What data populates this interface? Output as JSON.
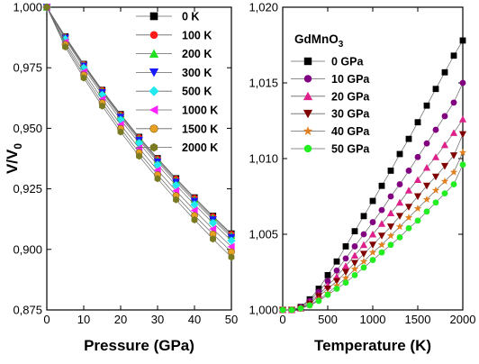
{
  "chart_data": [
    {
      "type": "line",
      "ylabel_main": "V/V",
      "ylabel_sub": "0",
      "xlabel": "Pressure (GPa)",
      "xlim": [
        0,
        50
      ],
      "ylim": [
        0.875,
        1.0
      ],
      "xticks": [
        "0",
        "10",
        "20",
        "30",
        "40",
        "50"
      ],
      "yticks": [
        "0,875",
        "0,900",
        "0,925",
        "0,950",
        "0,975",
        "1,000"
      ],
      "grid": false,
      "legend_position": "top-right",
      "series": [
        {
          "name": "0 K",
          "color": "#000000",
          "marker": "square",
          "x": [
            0,
            5,
            10,
            15,
            20,
            25,
            30,
            35,
            40,
            45,
            50
          ],
          "y": [
            1.0,
            0.9879,
            0.9765,
            0.9658,
            0.9558,
            0.9464,
            0.9376,
            0.9293,
            0.9214,
            0.9138,
            0.9065
          ]
        },
        {
          "name": "100 K",
          "color": "#ff1a1a",
          "marker": "circle",
          "x": [
            0,
            5,
            10,
            15,
            20,
            25,
            30,
            35,
            40,
            45,
            50
          ],
          "y": [
            1.0,
            0.9878,
            0.9764,
            0.9657,
            0.9556,
            0.9462,
            0.9374,
            0.9291,
            0.9212,
            0.9136,
            0.9063
          ]
        },
        {
          "name": "200 K",
          "color": "#22e022",
          "marker": "triangle-up",
          "x": [
            0,
            5,
            10,
            15,
            20,
            25,
            30,
            35,
            40,
            45,
            50
          ],
          "y": [
            1.0,
            0.9876,
            0.9761,
            0.9653,
            0.9552,
            0.9457,
            0.9369,
            0.9285,
            0.9206,
            0.913,
            0.9057
          ]
        },
        {
          "name": "300 K",
          "color": "#1a1aff",
          "marker": "triangle-down",
          "x": [
            0,
            5,
            10,
            15,
            20,
            25,
            30,
            35,
            40,
            45,
            50
          ],
          "y": [
            1.0,
            0.9873,
            0.9757,
            0.9648,
            0.9546,
            0.9451,
            0.9362,
            0.9278,
            0.9199,
            0.9123,
            0.905
          ]
        },
        {
          "name": "500 K",
          "color": "#22e8f0",
          "marker": "diamond",
          "x": [
            0,
            5,
            10,
            15,
            20,
            25,
            30,
            35,
            40,
            45,
            50
          ],
          "y": [
            1.0,
            0.9868,
            0.9749,
            0.9638,
            0.9535,
            0.9439,
            0.9349,
            0.9265,
            0.9185,
            0.9109,
            0.9036
          ]
        },
        {
          "name": "1000 K",
          "color": "#ff22ff",
          "marker": "triangle-left",
          "x": [
            0,
            5,
            10,
            15,
            20,
            25,
            30,
            35,
            40,
            45,
            50
          ],
          "y": [
            1.0,
            0.9856,
            0.9733,
            0.962,
            0.9515,
            0.9418,
            0.9327,
            0.9242,
            0.9161,
            0.9084,
            0.9011
          ]
        },
        {
          "name": "1500 K",
          "color": "#e8a020",
          "marker": "sphere",
          "x": [
            0,
            5,
            10,
            15,
            20,
            25,
            30,
            35,
            40,
            45,
            50
          ],
          "y": [
            1.0,
            0.9846,
            0.972,
            0.9605,
            0.9499,
            0.94,
            0.9308,
            0.9222,
            0.914,
            0.9063,
            0.899
          ]
        },
        {
          "name": "2000 K",
          "color": "#7a7a22",
          "marker": "hexagon",
          "x": [
            0,
            5,
            10,
            15,
            20,
            25,
            30,
            35,
            40,
            45,
            50
          ],
          "y": [
            1.0,
            0.9836,
            0.9708,
            0.9592,
            0.9485,
            0.9385,
            0.9292,
            0.9205,
            0.9122,
            0.9043,
            0.8968
          ]
        }
      ]
    },
    {
      "type": "line",
      "title": "GdMnO",
      "title_sub": "3",
      "xlabel": "Temperature (K)",
      "xlim": [
        0,
        2000
      ],
      "ylim": [
        1.0,
        1.02
      ],
      "xticks": [
        "0",
        "500",
        "1000",
        "1500",
        "2000"
      ],
      "yticks": [
        "1,000",
        "1,005",
        "1,010",
        "1,015",
        "1,020"
      ],
      "grid": false,
      "legend_position": "top-left",
      "series": [
        {
          "name": "0 GPa",
          "color": "#000000",
          "marker": "square",
          "x": [
            0,
            100,
            200,
            300,
            400,
            500,
            600,
            700,
            800,
            900,
            1000,
            1100,
            1200,
            1300,
            1400,
            1500,
            1600,
            1700,
            1800,
            1900,
            2000
          ],
          "y": [
            1.0,
            1.0,
            1.0002,
            1.0007,
            1.0014,
            1.0023,
            1.0032,
            1.0042,
            1.0052,
            1.0062,
            1.0072,
            1.0082,
            1.0092,
            1.0103,
            1.0113,
            1.0124,
            1.0135,
            1.0146,
            1.0157,
            1.0168,
            1.0178
          ]
        },
        {
          "name": "10 GPa",
          "color": "#800080",
          "marker": "circle",
          "x": [
            0,
            100,
            200,
            300,
            400,
            500,
            600,
            700,
            800,
            900,
            1000,
            1100,
            1200,
            1300,
            1400,
            1500,
            1600,
            1700,
            1800,
            1900,
            2000
          ],
          "y": [
            1.0,
            1.0,
            1.0002,
            1.0006,
            1.0012,
            1.0019,
            1.0026,
            1.0034,
            1.0042,
            1.005,
            1.0058,
            1.0066,
            1.0075,
            1.0083,
            1.0092,
            1.0101,
            1.011,
            1.0119,
            1.0128,
            1.0137,
            1.015
          ]
        },
        {
          "name": "20 GPa",
          "color": "#e0208a",
          "marker": "triangle-up",
          "x": [
            0,
            100,
            200,
            300,
            400,
            500,
            600,
            700,
            800,
            900,
            1000,
            1100,
            1200,
            1300,
            1400,
            1500,
            1600,
            1700,
            1800,
            1900,
            2000
          ],
          "y": [
            1.0,
            1.0,
            1.0001,
            1.0005,
            1.001,
            1.0016,
            1.0022,
            1.0029,
            1.0036,
            1.0043,
            1.005,
            1.0057,
            1.0064,
            1.0071,
            1.0079,
            1.0086,
            1.0094,
            1.0101,
            1.0109,
            1.0117,
            1.0126
          ]
        },
        {
          "name": "30 GPa",
          "color": "#800000",
          "marker": "triangle-down",
          "x": [
            0,
            100,
            200,
            300,
            400,
            500,
            600,
            700,
            800,
            900,
            1000,
            1100,
            1200,
            1300,
            1400,
            1500,
            1600,
            1700,
            1800,
            1900,
            2000
          ],
          "y": [
            1.0,
            1.0,
            1.0001,
            1.0004,
            1.0009,
            1.0014,
            1.0019,
            1.0025,
            1.0031,
            1.0037,
            1.0043,
            1.0049,
            1.0055,
            1.0062,
            1.0068,
            1.0075,
            1.0082,
            1.0088,
            1.0095,
            1.0102,
            1.0116
          ]
        },
        {
          "name": "40 GPa",
          "color": "#e08020",
          "marker": "star",
          "x": [
            0,
            100,
            200,
            300,
            400,
            500,
            600,
            700,
            800,
            900,
            1000,
            1100,
            1200,
            1300,
            1400,
            1500,
            1600,
            1700,
            1800,
            1900,
            2000
          ],
          "y": [
            1.0,
            1.0,
            1.0001,
            1.0003,
            1.0007,
            1.0011,
            1.0016,
            1.0021,
            1.0027,
            1.0032,
            1.0038,
            1.0043,
            1.0049,
            1.0055,
            1.0061,
            1.0067,
            1.0073,
            1.0079,
            1.0085,
            1.0091,
            1.0104
          ]
        },
        {
          "name": "50 GPa",
          "color": "#22ee22",
          "marker": "circle",
          "x": [
            0,
            100,
            200,
            300,
            400,
            500,
            600,
            700,
            800,
            900,
            1000,
            1100,
            1200,
            1300,
            1400,
            1500,
            1600,
            1700,
            1800,
            1900,
            2000
          ],
          "y": [
            1.0,
            1.0,
            1.0001,
            1.0003,
            1.0006,
            1.001,
            1.0014,
            1.0018,
            1.0023,
            1.0028,
            1.0033,
            1.0038,
            1.0043,
            1.0048,
            1.0054,
            1.0059,
            1.0065,
            1.0071,
            1.0077,
            1.0083,
            1.0096
          ]
        }
      ]
    }
  ]
}
